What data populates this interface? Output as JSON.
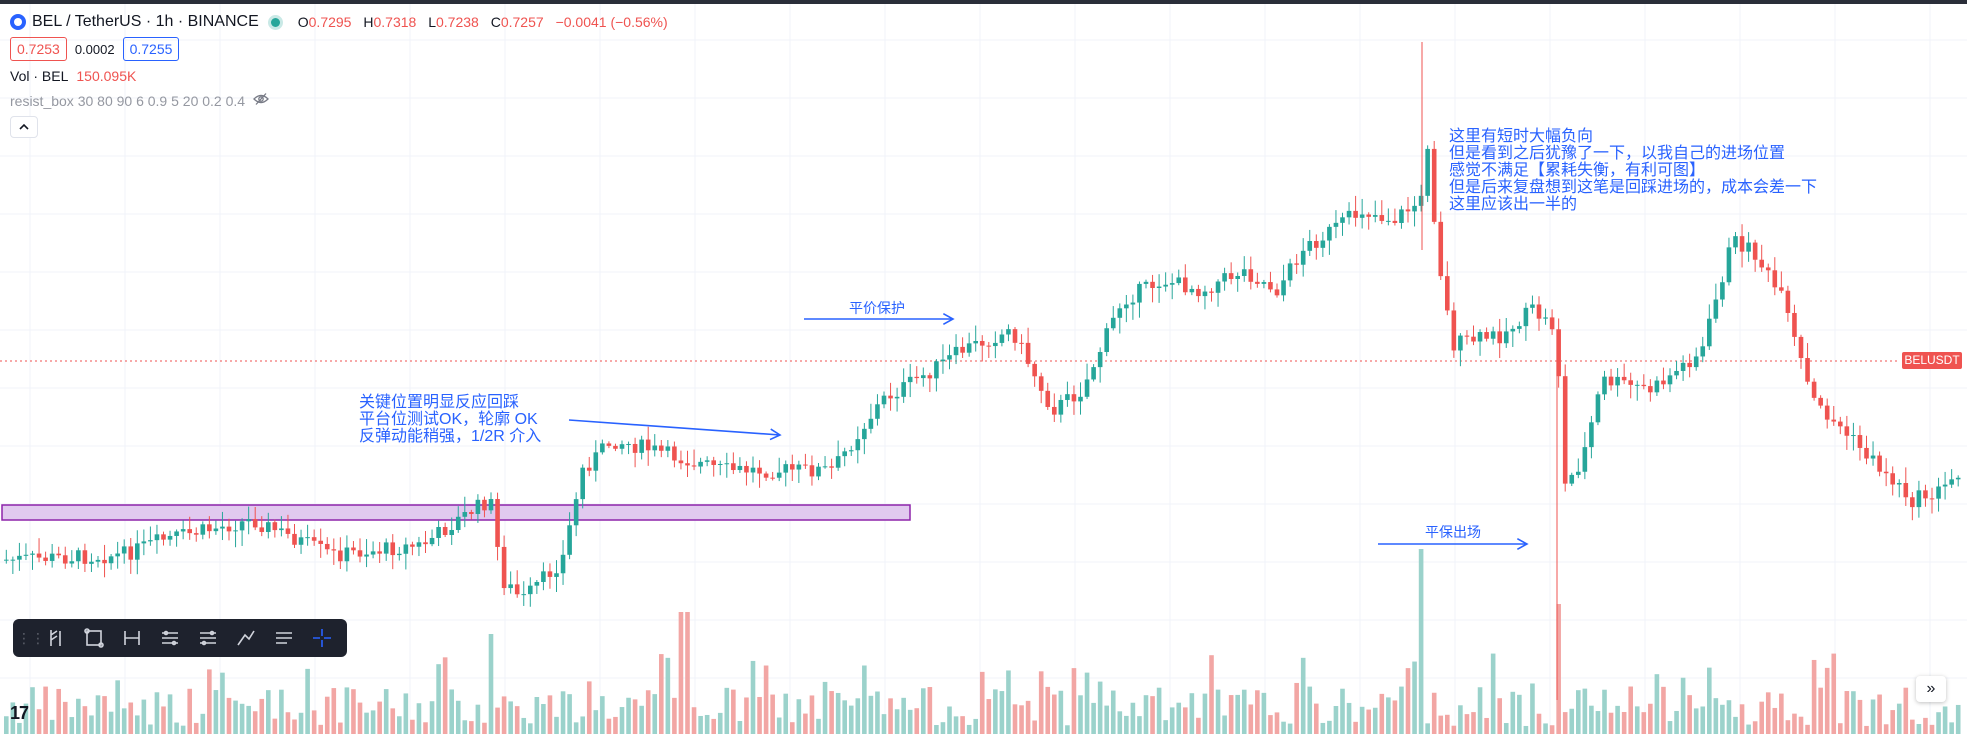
{
  "header": {
    "symbol": "BEL / TetherUS · 1h · BINANCE",
    "open_label": "O",
    "open": "0.7295",
    "high_label": "H",
    "high": "0.7318",
    "low_label": "L",
    "low": "0.7238",
    "close_label": "C",
    "close": "0.7257",
    "change": "−0.0041 (−0.56%)"
  },
  "quote": {
    "bid": "0.7253",
    "spread": "0.0002",
    "ask": "0.7255"
  },
  "volume": {
    "label": "Vol · BEL",
    "value": "150.095K"
  },
  "indicator": {
    "label": "resist_box 30 80 90 6 0.9 5 20 0.2 0.4",
    "visibility_icon": "eye-off-icon"
  },
  "collapse_icon": "chevron-up-icon",
  "annotations": {
    "a1": "关键位置明显反应回踩\n平台位测试OK，轮廓 OK\n反弹动能稍强，1/2R 介入",
    "a2": "平价保护",
    "a3": "这里有短时大幅负向\n但是看到之后犹豫了一下，以我自己的进场位置\n感觉不满足【累耗失衡，有利可图】\n但是后来复盘想到这笔是回踩进场的，成本会差一下\n这里应该出一半的",
    "a4": "平保出场"
  },
  "price_tag": {
    "label": "BELUSDT"
  },
  "toolbar": {
    "grip": "⋮⋮",
    "tools": [
      "brush-icon",
      "rectangle-icon",
      "measure-icon",
      "long-position-icon",
      "short-position-icon",
      "path-icon",
      "text-icon",
      "crosshair-icon"
    ]
  },
  "tv_logo": "17",
  "scroll_button": "»",
  "colors": {
    "up": "#26a69a",
    "down": "#ef5350",
    "up_vol": "#9bd2cb",
    "down_vol": "#f2a6a4",
    "annotation": "#2962ff",
    "box_fill": "#e1c9ef",
    "box_border": "#8e24aa"
  }
}
